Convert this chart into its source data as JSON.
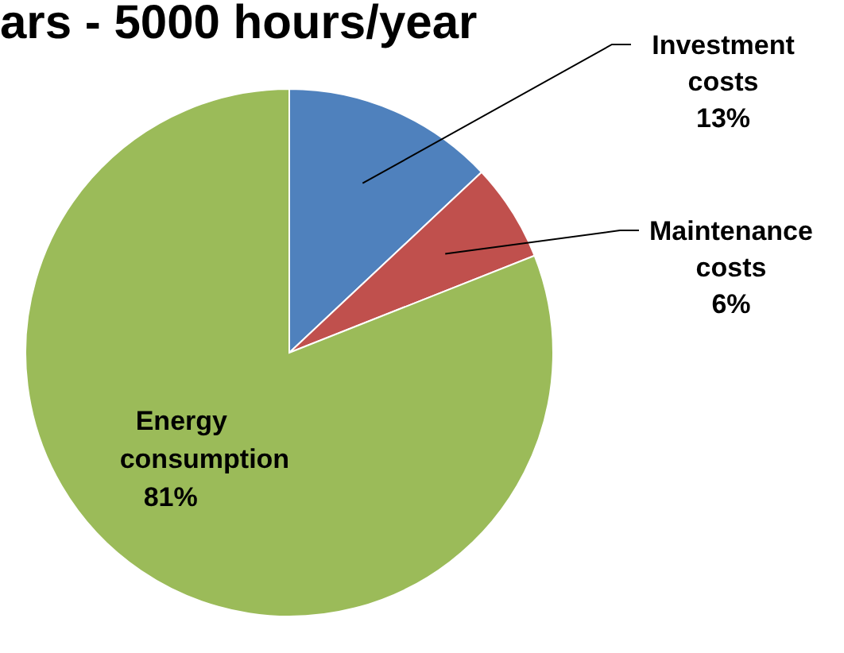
{
  "chart_data": {
    "type": "pie",
    "title": "ars - 5000 hours/year",
    "categories": [
      "Investment costs",
      "Maintenance costs",
      "Energy consumption"
    ],
    "values": [
      13,
      6,
      81
    ],
    "value_labels": [
      "13%",
      "6%",
      "81%"
    ],
    "colors": [
      "#4f81bd",
      "#c0504d",
      "#9bbb59"
    ]
  }
}
